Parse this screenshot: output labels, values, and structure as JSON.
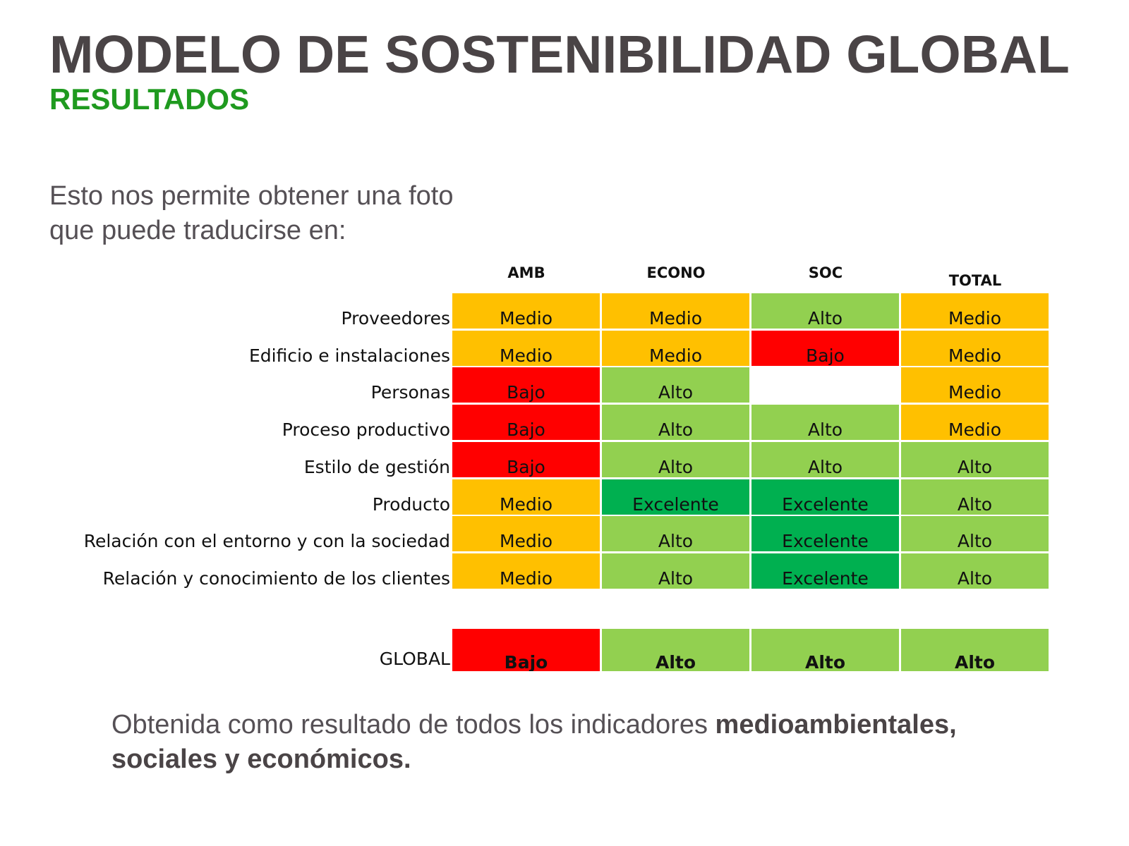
{
  "title": "MODELO DE SOSTENIBILIDAD GLOBAL",
  "subtitle": "RESULTADOS",
  "intro": {
    "line1": "Esto nos permite obtener una foto",
    "line2": "que puede traducirse en:"
  },
  "colors": {
    "Medio": "#ffc000",
    "Alto": "#92d050",
    "Bajo": "#ff0000",
    "Excelente": "#00b050",
    "title": "#4a4446",
    "subtitle": "#1f9a1f"
  },
  "table": {
    "columns": [
      "AMB",
      "ECONO",
      "SOC",
      "TOTAL"
    ],
    "rows": [
      {
        "label": "Proveedores",
        "values": [
          "Medio",
          "Medio",
          "Alto",
          "Medio"
        ]
      },
      {
        "label": "Edificio e instalaciones",
        "values": [
          "Medio",
          "Medio",
          "Bajo",
          "Medio"
        ]
      },
      {
        "label": "Personas",
        "values": [
          "Bajo",
          "Alto",
          "",
          "Medio"
        ]
      },
      {
        "label": "Proceso productivo",
        "values": [
          "Bajo",
          "Alto",
          "Alto",
          "Medio"
        ]
      },
      {
        "label": "Estilo de gestión",
        "values": [
          "Bajo",
          "Alto",
          "Alto",
          "Alto"
        ]
      },
      {
        "label": "Producto",
        "values": [
          "Medio",
          "Excelente",
          "Excelente",
          "Alto"
        ]
      },
      {
        "label": "Relación con el entorno y con la sociedad",
        "values": [
          "Medio",
          "Alto",
          "Excelente",
          "Alto"
        ]
      },
      {
        "label": "Relación y conocimiento de los clientes",
        "values": [
          "Medio",
          "Alto",
          "Excelente",
          "Alto"
        ]
      }
    ],
    "global": {
      "label": "GLOBAL",
      "values": [
        "Bajo",
        "Alto",
        "Alto",
        "Alto"
      ]
    }
  },
  "footer": {
    "text": "Obtenida como resultado de todos los indicadores ",
    "bold": "medioambientales, sociales y económicos."
  }
}
